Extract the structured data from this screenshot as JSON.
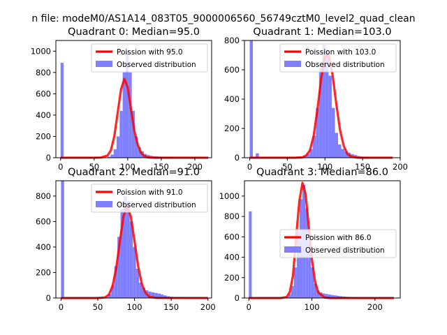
{
  "figure": {
    "suptitle": "n file: modeM0/AS1A14_083T05_9000006560_56749cztM0_level2_quad_clean"
  },
  "colors": {
    "poisson": "#ff0000",
    "observed": "#8080ff",
    "observed_edge": "#6060ff"
  },
  "chart_data": [
    {
      "type": "bar",
      "title": "Quadrant 0: Median=95.0",
      "xlim": [
        -7,
        225
      ],
      "ylim": [
        0,
        1100
      ],
      "xticks": [
        "0",
        "50",
        "100",
        "150",
        "200"
      ],
      "yticks": [
        "0",
        "200",
        "400",
        "600",
        "800",
        "1000"
      ],
      "legend_position": "top-right",
      "series": [
        {
          "name": "Poission with 95.0",
          "kind": "line",
          "x": [
            0,
            50,
            60,
            70,
            75,
            80,
            85,
            90,
            95,
            100,
            105,
            110,
            115,
            120,
            125,
            130,
            140,
            150,
            220
          ],
          "y": [
            0,
            0,
            2,
            20,
            70,
            200,
            420,
            640,
            740,
            660,
            450,
            250,
            120,
            45,
            15,
            4,
            0,
            0,
            0
          ]
        },
        {
          "name": "Observed distribution",
          "kind": "bar",
          "bin_width": 4.5,
          "x": [
            0,
            70,
            74.5,
            79,
            83.5,
            88,
            92.5,
            97,
            101.5,
            106,
            110.5,
            115,
            119.5,
            124,
            128.5,
            133,
            137.5,
            142,
            146.5,
            151,
            155.5,
            160,
            164.5,
            169,
            173.5,
            178
          ],
          "y": [
            890,
            10,
            30,
            80,
            200,
            440,
            800,
            1000,
            800,
            440,
            200,
            100,
            60,
            35,
            25,
            18,
            14,
            12,
            10,
            8,
            6,
            5,
            3,
            2,
            2,
            1
          ]
        }
      ]
    },
    {
      "type": "bar",
      "title": "Quadrant 1: Median=103.0",
      "xlim": [
        -7,
        200
      ],
      "ylim": [
        0,
        800
      ],
      "xticks": [
        "0",
        "50",
        "100",
        "150",
        "200"
      ],
      "yticks": [
        "0",
        "200",
        "400",
        "600",
        "800"
      ],
      "legend_position": "top-right",
      "series": [
        {
          "name": "Poission with 103.0",
          "kind": "line",
          "x": [
            0,
            60,
            70,
            75,
            80,
            85,
            90,
            95,
            100,
            105,
            110,
            115,
            120,
            125,
            130,
            135,
            145,
            190
          ],
          "y": [
            0,
            0,
            3,
            15,
            50,
            150,
            330,
            540,
            690,
            700,
            570,
            370,
            190,
            80,
            25,
            7,
            0,
            0
          ]
        },
        {
          "name": "Observed distribution",
          "kind": "bar",
          "bin_width": 4.2,
          "x": [
            0,
            8,
            67,
            71.2,
            75.4,
            79.6,
            83.8,
            88,
            92.2,
            96.4,
            100.6,
            104.8,
            109,
            113.2,
            117.4,
            121.6,
            125.8,
            130,
            134.2,
            138.4,
            142.6,
            146.8,
            151,
            155.2,
            159.4
          ],
          "y": [
            800,
            30,
            5,
            10,
            25,
            60,
            150,
            340,
            610,
            770,
            740,
            560,
            340,
            170,
            90,
            60,
            45,
            35,
            25,
            18,
            12,
            8,
            5,
            3,
            2
          ]
        }
      ]
    },
    {
      "type": "bar",
      "title": "Quadrant 2: Median=91.0",
      "xlim": [
        -7,
        205
      ],
      "ylim": [
        0,
        920
      ],
      "xticks": [
        "0",
        "50",
        "100",
        "150",
        "200"
      ],
      "yticks": [
        "0",
        "200",
        "400",
        "600",
        "800"
      ],
      "legend_position": "top-right",
      "series": [
        {
          "name": "Poission with 91.0",
          "kind": "line",
          "x": [
            0,
            50,
            60,
            65,
            70,
            75,
            80,
            85,
            90,
            95,
            100,
            105,
            110,
            115,
            120,
            130,
            200
          ],
          "y": [
            0,
            0,
            5,
            25,
            90,
            230,
            440,
            640,
            720,
            640,
            450,
            250,
            110,
            40,
            10,
            1,
            0
          ]
        },
        {
          "name": "Observed distribution",
          "kind": "bar",
          "bin_width": 4.2,
          "x": [
            0,
            60,
            64.2,
            68.4,
            72.6,
            76.8,
            81,
            85.2,
            89.4,
            93.6,
            97.8,
            102,
            106.2,
            110.4,
            114.6,
            118.8,
            123,
            127.2,
            131.4,
            135.6,
            139.8,
            144,
            148.2,
            152.4
          ],
          "y": [
            920,
            8,
            30,
            100,
            250,
            480,
            700,
            800,
            760,
            600,
            400,
            230,
            120,
            80,
            60,
            50,
            45,
            40,
            35,
            28,
            20,
            14,
            8,
            5
          ]
        }
      ]
    },
    {
      "type": "bar",
      "title": "Quadrant 3: Median=86.0",
      "xlim": [
        -7,
        240
      ],
      "ylim": [
        0,
        1150
      ],
      "xticks": [
        "0",
        "100",
        "200"
      ],
      "yticks": [
        "0",
        "200",
        "400",
        "600",
        "800",
        "1000"
      ],
      "legend_position": "center-right",
      "series": [
        {
          "name": "Poission with 86.0",
          "kind": "line",
          "x": [
            0,
            50,
            60,
            65,
            70,
            75,
            80,
            85,
            90,
            95,
            100,
            105,
            110,
            120,
            130,
            230
          ],
          "y": [
            0,
            0,
            10,
            60,
            220,
            600,
            950,
            1130,
            1020,
            700,
            380,
            160,
            55,
            5,
            0,
            0
          ]
        },
        {
          "name": "Observed distribution",
          "kind": "bar",
          "bin_width": 4.5,
          "x": [
            0,
            58,
            62.5,
            67,
            71.5,
            76,
            80.5,
            85,
            89.5,
            94,
            98.5,
            103,
            107.5,
            112,
            116.5,
            121,
            125.5,
            130,
            134.5,
            139,
            143.5,
            148,
            152.5,
            157,
            161.5,
            166
          ],
          "y": [
            850,
            10,
            40,
            120,
            300,
            650,
            970,
            1110,
            880,
            560,
            300,
            140,
            75,
            55,
            45,
            40,
            35,
            30,
            26,
            22,
            18,
            15,
            12,
            10,
            8,
            5
          ]
        }
      ]
    }
  ]
}
